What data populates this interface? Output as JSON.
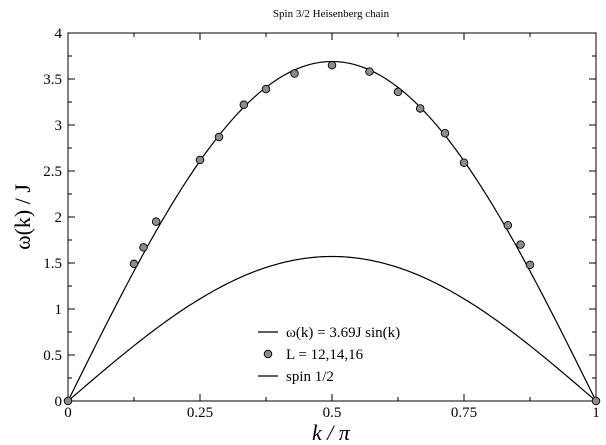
{
  "chart_data": {
    "type": "line",
    "title": "Spin 3/2 Heisenberg chain",
    "xlabel": "k / π",
    "ylabel": "ω(k) / J",
    "xlim": [
      0,
      1
    ],
    "ylim": [
      0,
      4
    ],
    "x_ticks": [
      "0",
      "0.25",
      "0.5",
      "0.75",
      "1"
    ],
    "y_ticks": [
      "0",
      "0.5",
      "1",
      "1.5",
      "2",
      "2.5",
      "3",
      "3.5",
      "4"
    ],
    "grid": false,
    "legend_position": "bottom-center",
    "series": [
      {
        "name": "ω(k) = 3.69J sin(k)",
        "kind": "line",
        "function": "3.69*sin(pi*x)",
        "amplitude": 3.69,
        "color": "#000000"
      },
      {
        "name": "L = 12,14,16",
        "kind": "scatter",
        "marker_color": "#8c8c8c",
        "points": [
          {
            "x": 0.0,
            "y": 0.0
          },
          {
            "x": 0.125,
            "y": 1.49
          },
          {
            "x": 0.143,
            "y": 1.67
          },
          {
            "x": 0.167,
            "y": 1.95
          },
          {
            "x": 0.25,
            "y": 2.62
          },
          {
            "x": 0.286,
            "y": 2.87
          },
          {
            "x": 0.333,
            "y": 3.22
          },
          {
            "x": 0.375,
            "y": 3.39
          },
          {
            "x": 0.429,
            "y": 3.56
          },
          {
            "x": 0.5,
            "y": 3.65
          },
          {
            "x": 0.571,
            "y": 3.58
          },
          {
            "x": 0.625,
            "y": 3.36
          },
          {
            "x": 0.667,
            "y": 3.18
          },
          {
            "x": 0.714,
            "y": 2.91
          },
          {
            "x": 0.75,
            "y": 2.59
          },
          {
            "x": 0.833,
            "y": 1.91
          },
          {
            "x": 0.857,
            "y": 1.7
          },
          {
            "x": 0.875,
            "y": 1.48
          },
          {
            "x": 1.0,
            "y": 0.0
          }
        ]
      },
      {
        "name": "spin 1/2",
        "kind": "line",
        "function": "(pi/2)*sin(pi*x)",
        "amplitude": 1.5708,
        "color": "#000000"
      }
    ],
    "legend": [
      {
        "label": "ω(k) = 3.69J sin(k)",
        "symbol": "line"
      },
      {
        "label": "L = 12,14,16",
        "symbol": "circle"
      },
      {
        "label": "spin 1/2",
        "symbol": "line"
      }
    ]
  }
}
